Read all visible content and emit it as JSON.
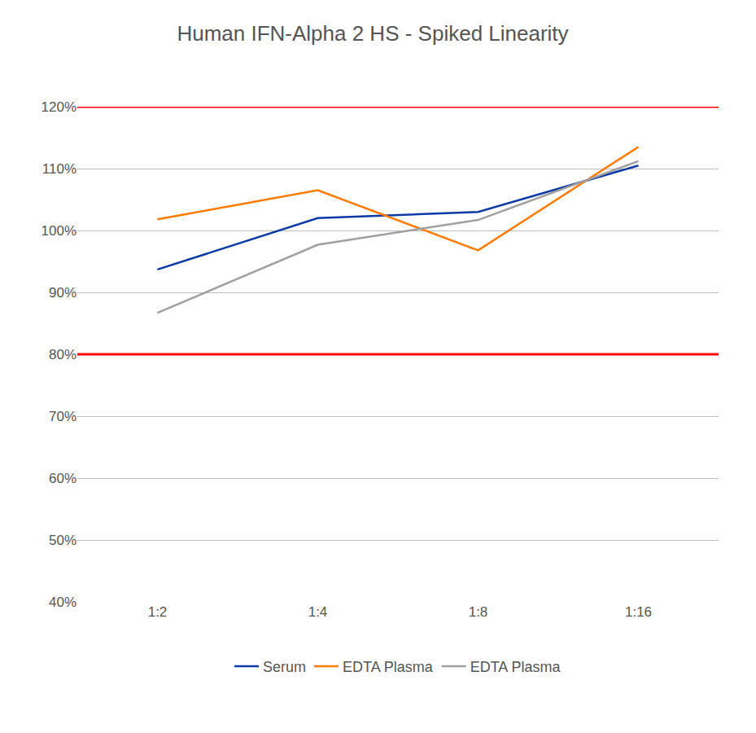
{
  "chart_data": {
    "type": "line",
    "title": "Human IFN-Alpha 2 HS - Spiked Linearity",
    "categories": [
      "1:2",
      "1:4",
      "1:8",
      "1:16"
    ],
    "series": [
      {
        "name": "Serum",
        "color": "#0b39a6",
        "values": [
          93.7,
          102,
          103,
          110.5
        ]
      },
      {
        "name": "EDTA Plasma",
        "color": "#ff7b00",
        "values": [
          101.8,
          106.5,
          96.8,
          113.5
        ]
      },
      {
        "name": "EDTA Plasma",
        "color": "#a0a0a0",
        "values": [
          86.7,
          97.7,
          101.7,
          111.2
        ]
      }
    ],
    "ylim": [
      40,
      120
    ],
    "yticks": [
      {
        "value": 40,
        "label": "40%"
      },
      {
        "value": 50,
        "label": "50%"
      },
      {
        "value": 60,
        "label": "60%"
      },
      {
        "value": 70,
        "label": "70%"
      },
      {
        "value": 80,
        "label": "80%"
      },
      {
        "value": 90,
        "label": "90%"
      },
      {
        "value": 100,
        "label": "100%"
      },
      {
        "value": 110,
        "label": "110%"
      },
      {
        "value": 120,
        "label": "120%"
      }
    ],
    "reference_lines": [
      {
        "value": 80,
        "color": "#ff0000"
      },
      {
        "value": 120,
        "color": "#ff0000"
      }
    ],
    "grid": true,
    "legend": "bottom"
  }
}
